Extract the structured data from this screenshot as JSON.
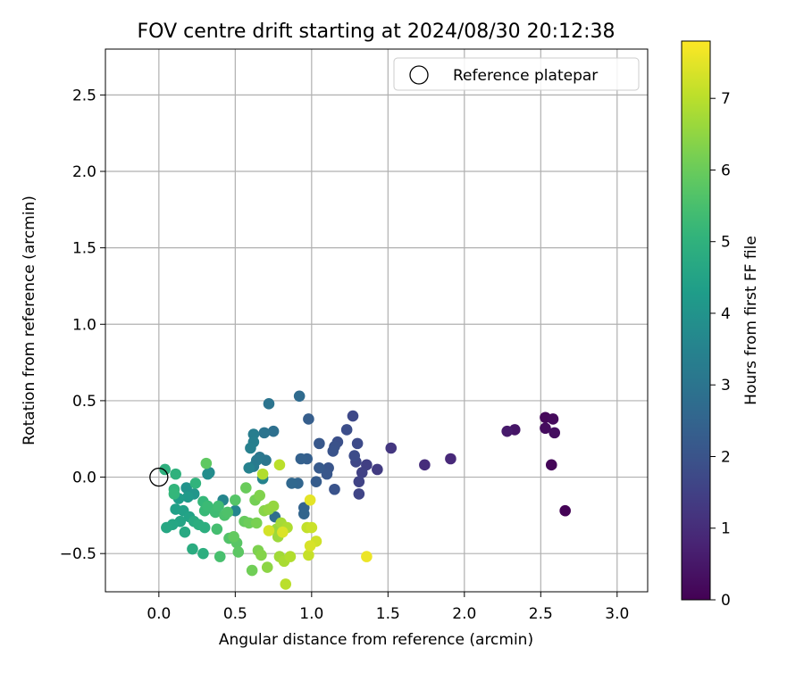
{
  "chart_data": {
    "type": "scatter",
    "title": "FOV centre drift starting at 2024/08/30 20:12:38",
    "xlabel": "Angular distance from reference (arcmin)",
    "ylabel": "Rotation from reference (arcmin)",
    "xlim": [
      -0.35,
      3.2
    ],
    "ylim": [
      -0.75,
      2.8
    ],
    "xticks": [
      0.0,
      0.5,
      1.0,
      1.5,
      2.0,
      2.5,
      3.0
    ],
    "xtick_labels": [
      "0.0",
      "0.5",
      "1.0",
      "1.5",
      "2.0",
      "2.5",
      "3.0"
    ],
    "yticks": [
      -0.5,
      0.0,
      0.5,
      1.0,
      1.5,
      2.0,
      2.5
    ],
    "ytick_labels": [
      "−0.5",
      "0.0",
      "0.5",
      "1.0",
      "1.5",
      "2.0",
      "2.5"
    ],
    "grid": true,
    "legend": {
      "position": "top-right",
      "entries": [
        "Reference platepar"
      ]
    },
    "reference_point": {
      "x": 0.0,
      "y": 0.0,
      "label": "Reference platepar",
      "marker": "open-circle"
    },
    "colorbar": {
      "label": "Hours from first FF file",
      "range": [
        0,
        7.8
      ],
      "ticks": [
        0,
        1,
        2,
        3,
        4,
        5,
        6,
        7
      ],
      "tick_labels": [
        "0",
        "1",
        "2",
        "3",
        "4",
        "5",
        "6",
        "7"
      ],
      "colormap": "viridis"
    },
    "points": [
      {
        "x": 2.66,
        "y": -0.22,
        "h": 0.05
      },
      {
        "x": 2.57,
        "y": 0.08,
        "h": 0.1
      },
      {
        "x": 2.53,
        "y": 0.39,
        "h": 0.15
      },
      {
        "x": 2.58,
        "y": 0.38,
        "h": 0.2
      },
      {
        "x": 2.53,
        "y": 0.32,
        "h": 0.25
      },
      {
        "x": 2.59,
        "y": 0.29,
        "h": 0.3
      },
      {
        "x": 2.33,
        "y": 0.31,
        "h": 0.45
      },
      {
        "x": 2.28,
        "y": 0.3,
        "h": 0.55
      },
      {
        "x": 1.91,
        "y": 0.12,
        "h": 0.9
      },
      {
        "x": 1.74,
        "y": 0.08,
        "h": 1.0
      },
      {
        "x": 1.52,
        "y": 0.19,
        "h": 1.25
      },
      {
        "x": 1.43,
        "y": 0.05,
        "h": 1.35
      },
      {
        "x": 1.36,
        "y": 0.08,
        "h": 1.45
      },
      {
        "x": 1.33,
        "y": 0.03,
        "h": 1.5
      },
      {
        "x": 1.31,
        "y": -0.03,
        "h": 1.55
      },
      {
        "x": 1.31,
        "y": -0.11,
        "h": 1.6
      },
      {
        "x": 1.29,
        "y": 0.1,
        "h": 1.65
      },
      {
        "x": 1.27,
        "y": 0.4,
        "h": 1.7
      },
      {
        "x": 1.3,
        "y": 0.22,
        "h": 1.75
      },
      {
        "x": 1.28,
        "y": 0.14,
        "h": 1.8
      },
      {
        "x": 1.23,
        "y": 0.31,
        "h": 1.85
      },
      {
        "x": 1.17,
        "y": 0.23,
        "h": 1.9
      },
      {
        "x": 1.15,
        "y": 0.2,
        "h": 1.95
      },
      {
        "x": 1.14,
        "y": 0.17,
        "h": 2.0
      },
      {
        "x": 1.15,
        "y": -0.08,
        "h": 2.0
      },
      {
        "x": 1.11,
        "y": 0.06,
        "h": 2.05
      },
      {
        "x": 1.1,
        "y": 0.02,
        "h": 2.1
      },
      {
        "x": 1.05,
        "y": 0.22,
        "h": 2.15
      },
      {
        "x": 1.05,
        "y": 0.06,
        "h": 2.2
      },
      {
        "x": 1.03,
        "y": -0.03,
        "h": 2.25
      },
      {
        "x": 0.98,
        "y": 0.38,
        "h": 2.3
      },
      {
        "x": 0.97,
        "y": 0.12,
        "h": 2.35
      },
      {
        "x": 0.93,
        "y": 0.12,
        "h": 2.4
      },
      {
        "x": 0.95,
        "y": -0.2,
        "h": 2.45
      },
      {
        "x": 0.95,
        "y": -0.24,
        "h": 2.5
      },
      {
        "x": 0.91,
        "y": -0.04,
        "h": 2.55
      },
      {
        "x": 0.87,
        "y": -0.04,
        "h": 2.6
      },
      {
        "x": 0.92,
        "y": 0.53,
        "h": 2.7
      },
      {
        "x": 0.76,
        "y": -0.26,
        "h": 2.75
      },
      {
        "x": 0.75,
        "y": 0.3,
        "h": 2.85
      },
      {
        "x": 0.72,
        "y": 0.48,
        "h": 3.0
      },
      {
        "x": 0.69,
        "y": 0.29,
        "h": 3.0
      },
      {
        "x": 0.7,
        "y": 0.11,
        "h": 3.05
      },
      {
        "x": 0.66,
        "y": 0.13,
        "h": 3.1
      },
      {
        "x": 0.64,
        "y": 0.11,
        "h": 3.15
      },
      {
        "x": 0.62,
        "y": 0.07,
        "h": 3.2
      },
      {
        "x": 0.62,
        "y": 0.28,
        "h": 3.3
      },
      {
        "x": 0.62,
        "y": 0.23,
        "h": 3.35
      },
      {
        "x": 0.6,
        "y": 0.19,
        "h": 3.4
      },
      {
        "x": 0.59,
        "y": 0.06,
        "h": 3.45
      },
      {
        "x": 0.68,
        "y": -0.01,
        "h": 3.5
      },
      {
        "x": 0.5,
        "y": -0.22,
        "h": 3.55
      },
      {
        "x": 0.42,
        "y": -0.15,
        "h": 3.6
      },
      {
        "x": 0.33,
        "y": 0.03,
        "h": 3.7
      },
      {
        "x": 0.32,
        "y": 0.02,
        "h": 3.8
      },
      {
        "x": 0.18,
        "y": -0.07,
        "h": 4.0
      },
      {
        "x": 0.23,
        "y": -0.11,
        "h": 4.1
      },
      {
        "x": 0.19,
        "y": -0.13,
        "h": 4.2
      },
      {
        "x": 0.13,
        "y": -0.14,
        "h": 4.3
      },
      {
        "x": 0.11,
        "y": -0.21,
        "h": 4.4
      },
      {
        "x": 0.16,
        "y": -0.22,
        "h": 4.45
      },
      {
        "x": 0.2,
        "y": -0.26,
        "h": 4.5
      },
      {
        "x": 0.14,
        "y": -0.29,
        "h": 4.55
      },
      {
        "x": 0.09,
        "y": -0.31,
        "h": 4.6
      },
      {
        "x": 0.05,
        "y": -0.33,
        "h": 4.65
      },
      {
        "x": 0.17,
        "y": -0.36,
        "h": 4.7
      },
      {
        "x": 0.23,
        "y": -0.29,
        "h": 4.75
      },
      {
        "x": 0.22,
        "y": -0.47,
        "h": 4.8
      },
      {
        "x": 0.26,
        "y": -0.31,
        "h": 4.85
      },
      {
        "x": 0.3,
        "y": -0.33,
        "h": 4.9
      },
      {
        "x": 0.29,
        "y": -0.5,
        "h": 4.9
      },
      {
        "x": 0.04,
        "y": 0.05,
        "h": 4.95
      },
      {
        "x": 0.11,
        "y": 0.02,
        "h": 5.0
      },
      {
        "x": 0.24,
        "y": -0.04,
        "h": 5.05
      },
      {
        "x": 0.1,
        "y": -0.08,
        "h": 5.1
      },
      {
        "x": 0.1,
        "y": -0.11,
        "h": 5.15
      },
      {
        "x": 0.29,
        "y": -0.16,
        "h": 5.2
      },
      {
        "x": 0.3,
        "y": -0.22,
        "h": 5.25
      },
      {
        "x": 0.32,
        "y": -0.19,
        "h": 5.3
      },
      {
        "x": 0.37,
        "y": -0.23,
        "h": 5.35
      },
      {
        "x": 0.39,
        "y": -0.19,
        "h": 5.4
      },
      {
        "x": 0.38,
        "y": -0.34,
        "h": 5.45
      },
      {
        "x": 0.4,
        "y": -0.52,
        "h": 5.5
      },
      {
        "x": 0.43,
        "y": -0.25,
        "h": 5.55
      },
      {
        "x": 0.45,
        "y": -0.23,
        "h": 5.6
      },
      {
        "x": 0.46,
        "y": -0.4,
        "h": 5.65
      },
      {
        "x": 0.5,
        "y": -0.15,
        "h": 5.7
      },
      {
        "x": 0.51,
        "y": -0.43,
        "h": 5.75
      },
      {
        "x": 0.52,
        "y": -0.49,
        "h": 5.8
      },
      {
        "x": 0.31,
        "y": 0.09,
        "h": 5.85
      },
      {
        "x": 0.49,
        "y": -0.39,
        "h": 5.9
      },
      {
        "x": 0.56,
        "y": -0.29,
        "h": 5.95
      },
      {
        "x": 0.57,
        "y": -0.07,
        "h": 6.0
      },
      {
        "x": 0.59,
        "y": -0.3,
        "h": 6.05
      },
      {
        "x": 0.61,
        "y": -0.61,
        "h": 6.1
      },
      {
        "x": 0.63,
        "y": -0.15,
        "h": 6.15
      },
      {
        "x": 0.64,
        "y": -0.3,
        "h": 6.2
      },
      {
        "x": 0.65,
        "y": -0.48,
        "h": 6.25
      },
      {
        "x": 0.66,
        "y": -0.12,
        "h": 6.3
      },
      {
        "x": 0.67,
        "y": -0.51,
        "h": 6.35
      },
      {
        "x": 0.69,
        "y": -0.22,
        "h": 6.4
      },
      {
        "x": 0.71,
        "y": -0.59,
        "h": 6.45
      },
      {
        "x": 0.72,
        "y": -0.21,
        "h": 6.5
      },
      {
        "x": 0.75,
        "y": -0.19,
        "h": 6.55
      },
      {
        "x": 0.77,
        "y": -0.34,
        "h": 6.6
      },
      {
        "x": 0.78,
        "y": -0.39,
        "h": 6.65
      },
      {
        "x": 0.79,
        "y": -0.52,
        "h": 6.7
      },
      {
        "x": 0.8,
        "y": -0.3,
        "h": 6.75
      },
      {
        "x": 0.82,
        "y": -0.55,
        "h": 6.8
      },
      {
        "x": 0.84,
        "y": -0.33,
        "h": 6.85
      },
      {
        "x": 0.86,
        "y": -0.52,
        "h": 6.9
      },
      {
        "x": 0.68,
        "y": 0.02,
        "h": 6.9
      },
      {
        "x": 0.83,
        "y": -0.7,
        "h": 7.0
      },
      {
        "x": 0.79,
        "y": 0.08,
        "h": 7.0
      },
      {
        "x": 0.97,
        "y": -0.33,
        "h": 7.1
      },
      {
        "x": 0.98,
        "y": -0.51,
        "h": 7.15
      },
      {
        "x": 1.0,
        "y": -0.33,
        "h": 7.2
      },
      {
        "x": 1.03,
        "y": -0.42,
        "h": 7.25
      },
      {
        "x": 0.72,
        "y": -0.35,
        "h": 7.3
      },
      {
        "x": 0.99,
        "y": -0.45,
        "h": 7.35
      },
      {
        "x": 0.81,
        "y": -0.36,
        "h": 7.4
      },
      {
        "x": 0.99,
        "y": -0.15,
        "h": 7.5
      },
      {
        "x": 1.36,
        "y": -0.52,
        "h": 7.6
      }
    ]
  }
}
